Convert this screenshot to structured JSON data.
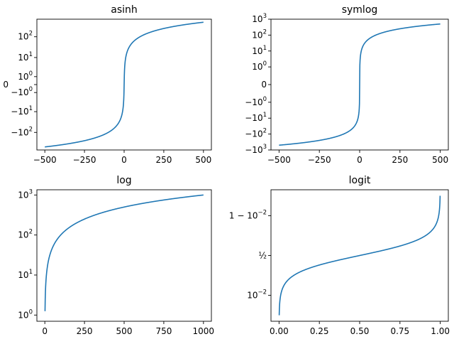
{
  "chart_data": [
    {
      "type": "line",
      "title": "asinh",
      "yscale": "asinh",
      "xlim": [
        -550,
        550
      ],
      "ylim": [
        -700,
        700
      ],
      "xticks": [
        {
          "value": -500,
          "label": "−500"
        },
        {
          "value": -250,
          "label": "−250"
        },
        {
          "value": 0,
          "label": "0"
        },
        {
          "value": 250,
          "label": "250"
        },
        {
          "value": 500,
          "label": "500"
        }
      ],
      "yticks": [
        {
          "value": 100,
          "label": "10",
          "sup": "2"
        },
        {
          "value": 10,
          "label": "10",
          "sup": "1"
        },
        {
          "value": 1,
          "label": "10",
          "sup": "0"
        },
        {
          "value": 0,
          "label": "0",
          "sup": ""
        },
        {
          "value": -1,
          "label": "−10",
          "sup": "0"
        },
        {
          "value": -10,
          "label": "−10",
          "sup": "1"
        },
        {
          "value": -100,
          "label": "−10",
          "sup": "2"
        }
      ],
      "series": [
        {
          "x": [
            -500,
            500
          ],
          "y": [
            -500,
            500
          ],
          "color": "#1f77b4"
        }
      ]
    },
    {
      "type": "line",
      "title": "symlog",
      "yscale": "symlog",
      "xlim": [
        -550,
        550
      ],
      "ylim": [
        -1000,
        1000
      ],
      "xticks": [
        {
          "value": -500,
          "label": "−500"
        },
        {
          "value": -250,
          "label": "−250"
        },
        {
          "value": 0,
          "label": "0"
        },
        {
          "value": 250,
          "label": "250"
        },
        {
          "value": 500,
          "label": "500"
        }
      ],
      "yticks": [
        {
          "value": 1000,
          "label": "10",
          "sup": "3"
        },
        {
          "value": 100,
          "label": "10",
          "sup": "2"
        },
        {
          "value": 10,
          "label": "10",
          "sup": "1"
        },
        {
          "value": 1,
          "label": "10",
          "sup": "0"
        },
        {
          "value": 0,
          "label": "0",
          "sup": ""
        },
        {
          "value": -1,
          "label": "−10",
          "sup": "0"
        },
        {
          "value": -10,
          "label": "−10",
          "sup": "1"
        },
        {
          "value": -100,
          "label": "−10",
          "sup": "2"
        },
        {
          "value": -1000,
          "label": "−10",
          "sup": "3"
        }
      ],
      "series": [
        {
          "x": [
            -500,
            500
          ],
          "y": [
            -500,
            500
          ],
          "color": "#1f77b4"
        }
      ]
    },
    {
      "type": "line",
      "title": "log",
      "yscale": "log",
      "xlim": [
        -50,
        1050
      ],
      "ylim": [
        0.7,
        1350
      ],
      "xticks": [
        {
          "value": 0,
          "label": "0"
        },
        {
          "value": 250,
          "label": "250"
        },
        {
          "value": 500,
          "label": "500"
        },
        {
          "value": 750,
          "label": "750"
        },
        {
          "value": 1000,
          "label": "1000"
        }
      ],
      "yticks": [
        {
          "value": 1000,
          "label": "10",
          "sup": "3"
        },
        {
          "value": 100,
          "label": "10",
          "sup": "2"
        },
        {
          "value": 10,
          "label": "10",
          "sup": "1"
        },
        {
          "value": 1,
          "label": "10",
          "sup": "0"
        }
      ],
      "series": [
        {
          "x": [
            0,
            1000
          ],
          "y": [
            0,
            1000
          ],
          "color": "#1f77b4"
        }
      ]
    },
    {
      "type": "line",
      "title": "logit",
      "yscale": "logit",
      "xlim": [
        -0.05,
        1.05
      ],
      "ylim": [
        0.0005,
        0.9995
      ],
      "xticks": [
        {
          "value": 0,
          "label": "0.00"
        },
        {
          "value": 0.25,
          "label": "0.25"
        },
        {
          "value": 0.5,
          "label": "0.50"
        },
        {
          "value": 0.75,
          "label": "0.75"
        },
        {
          "value": 1,
          "label": "1.00"
        }
      ],
      "yticks": [
        {
          "value": 0.99,
          "label": "1 − 10",
          "sup": "−2"
        },
        {
          "value": 0.5,
          "label": "½",
          "sup": ""
        },
        {
          "value": 0.01,
          "label": "10",
          "sup": "−2"
        }
      ],
      "series": [
        {
          "x": [
            0.001,
            0.999
          ],
          "y": [
            0.001,
            0.999
          ],
          "color": "#1f77b4"
        }
      ]
    }
  ]
}
